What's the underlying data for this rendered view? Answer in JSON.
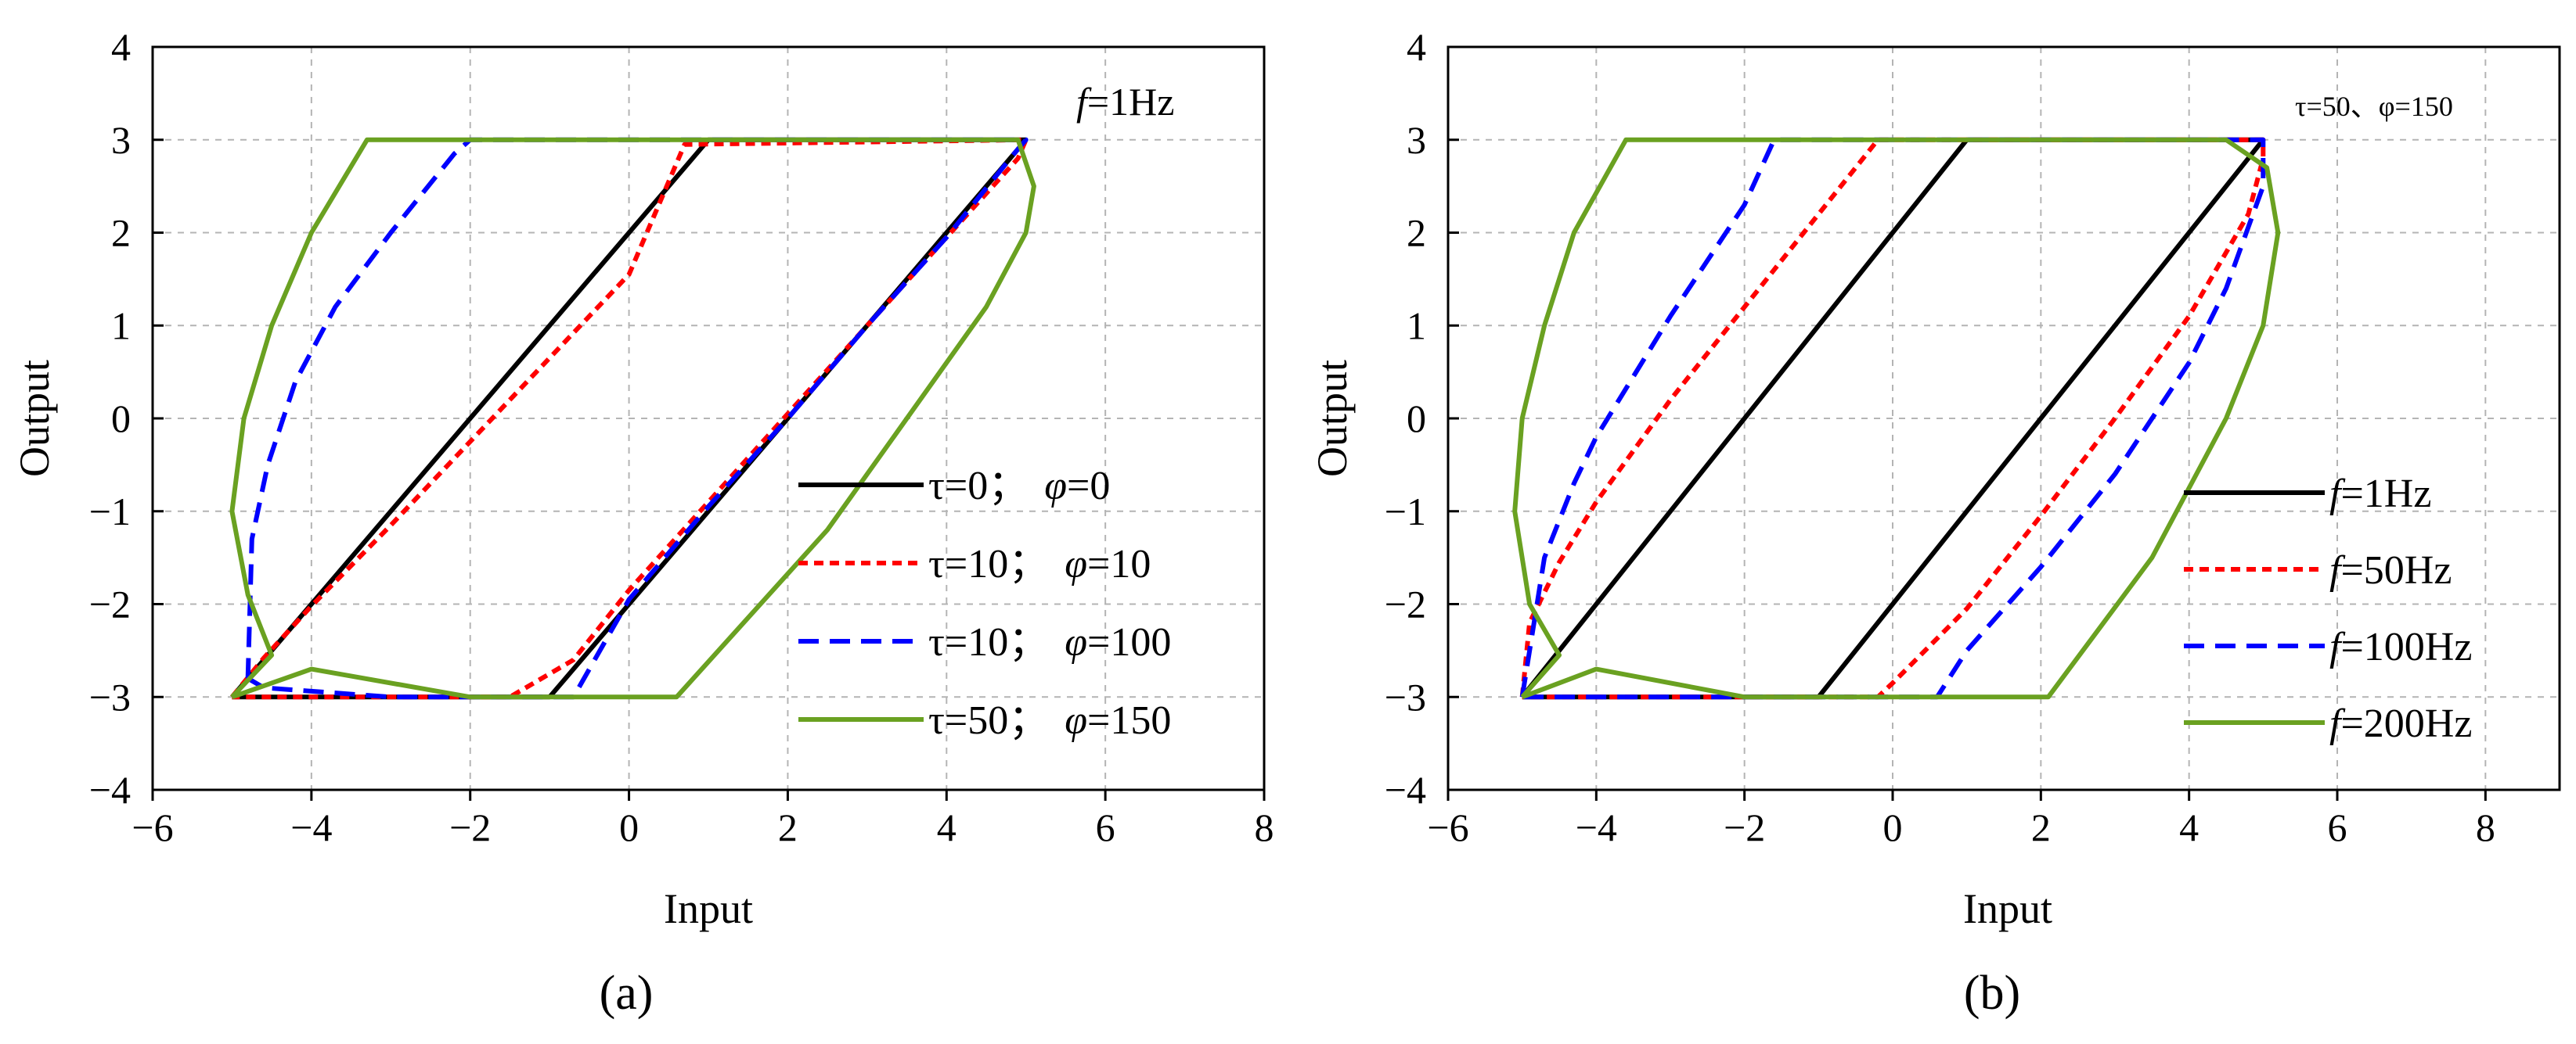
{
  "colors": {
    "black": "#000000",
    "red": "#ff0000",
    "blue": "#0000ff",
    "green": "#6aa121"
  },
  "chart_data": [
    {
      "type": "line",
      "id": "a",
      "caption": "(a)",
      "annotation": {
        "prefix": "f",
        "value": "=1Hz"
      },
      "xlabel": "Input",
      "ylabel": "Output",
      "xlim": [
        -6,
        8
      ],
      "ylim": [
        -4,
        4
      ],
      "grid": true,
      "legend_position": "bottom-right",
      "xticks": [
        -6,
        -4,
        -2,
        0,
        2,
        4,
        6,
        8
      ],
      "yticks": [
        -4,
        -3,
        -2,
        -1,
        0,
        1,
        2,
        3,
        4
      ],
      "xtick_labels": [
        "−6",
        "−4",
        "−2",
        "0",
        "2",
        "4",
        "6",
        "8"
      ],
      "ytick_labels": [
        "−4",
        "−3",
        "−2",
        "−1",
        "0",
        "1",
        "2",
        "3",
        "4"
      ],
      "series": [
        {
          "name": "τ=0；φ=0",
          "legend_prefix": "τ=0；",
          "legend_phi": "φ",
          "legend_value": "=0",
          "color": "black",
          "dash": "solid",
          "x": [
            -5,
            1,
            5,
            -1,
            -5
          ],
          "y": [
            -3,
            3,
            3,
            -3,
            -3
          ]
        },
        {
          "name": "τ=10；φ=10",
          "legend_prefix": "τ=10；",
          "legend_phi": "φ",
          "legend_value": "=10",
          "color": "red",
          "dash": "dotted",
          "x": [
            -5,
            -4.6,
            -4,
            -3,
            -2,
            -1,
            0,
            0.7,
            5,
            4.9,
            4,
            3,
            2,
            1,
            0,
            -0.7,
            -1.5,
            -3,
            -5
          ],
          "y": [
            -3,
            -2.58,
            -2.02,
            -1.15,
            -0.25,
            0.65,
            1.55,
            2.95,
            3,
            2.8,
            1.95,
            1.0,
            0.05,
            -0.9,
            -1.85,
            -2.6,
            -3,
            -3,
            -3
          ]
        },
        {
          "name": "τ=10；φ=100",
          "legend_prefix": "τ=10；",
          "legend_phi": "φ",
          "legend_value": "=100",
          "color": "blue",
          "dash": "dashed",
          "x": [
            -4.8,
            -4.75,
            -4.55,
            -4.2,
            -3.7,
            -3.0,
            -2.2,
            -2.0,
            5,
            4.85,
            4,
            3,
            2,
            1,
            0,
            -0.7,
            -3.0,
            -4.6,
            -4.8
          ],
          "y": [
            -2.8,
            -1.3,
            -0.5,
            0.4,
            1.2,
            2.0,
            2.85,
            3,
            3,
            2.85,
            1.95,
            1.0,
            0.0,
            -0.95,
            -1.95,
            -3,
            -3,
            -2.9,
            -2.8
          ]
        },
        {
          "name": "τ=50；φ=150",
          "legend_prefix": "τ=50；",
          "legend_phi": "φ",
          "legend_value": "=150",
          "color": "green",
          "dash": "solid",
          "x": [
            -5,
            -4.5,
            -4.8,
            -5.0,
            -4.85,
            -4.5,
            -4.0,
            -3.3,
            4.9,
            5.1,
            5.0,
            4.5,
            3.5,
            2.5,
            0.6,
            -2.0,
            -4.0,
            -5.0
          ],
          "y": [
            -3,
            -2.55,
            -1.9,
            -1.0,
            0.0,
            1.0,
            2.0,
            3,
            3,
            2.5,
            2.0,
            1.2,
            0.0,
            -1.2,
            -3,
            -3,
            -2.7,
            -3
          ]
        }
      ]
    },
    {
      "type": "line",
      "id": "b",
      "caption": "(b)",
      "annotation": {
        "text": "τ=50、φ=150"
      },
      "xlabel": "Input",
      "ylabel": "Output",
      "xlim": [
        -6,
        9
      ],
      "ylim": [
        -4,
        4
      ],
      "grid": true,
      "legend_position": "bottom-right",
      "xticks": [
        -6,
        -4,
        -2,
        0,
        2,
        4,
        6,
        8
      ],
      "yticks": [
        -4,
        -3,
        -2,
        -1,
        0,
        1,
        2,
        3,
        4
      ],
      "xtick_labels": [
        "−6",
        "−4",
        "−2",
        "0",
        "2",
        "4",
        "6",
        "8"
      ],
      "ytick_labels": [
        "−4",
        "−3",
        "−2",
        "−1",
        "0",
        "1",
        "2",
        "3",
        "4"
      ],
      "series": [
        {
          "name": "f=1Hz",
          "legend_prefix": "f",
          "legend_value": "=1Hz",
          "color": "black",
          "dash": "solid",
          "x": [
            -5,
            1,
            5,
            -1,
            -5
          ],
          "y": [
            -3,
            3,
            3,
            -3,
            -3
          ]
        },
        {
          "name": "f=50Hz",
          "legend_prefix": "f",
          "legend_value": "=50Hz",
          "color": "red",
          "dash": "dotted",
          "x": [
            -5,
            -4.9,
            -4.5,
            -4,
            -3,
            -2,
            -1,
            -0.2,
            5,
            5.0,
            4.8,
            4,
            3,
            2,
            1,
            0,
            -0.2,
            -3.0,
            -5
          ],
          "y": [
            -3,
            -2.2,
            -1.55,
            -0.9,
            0.2,
            1.2,
            2.2,
            3,
            3,
            2.8,
            2.2,
            1.1,
            0.0,
            -1.05,
            -2.05,
            -2.85,
            -3,
            -3,
            -3
          ]
        },
        {
          "name": "f=100Hz",
          "legend_prefix": "f",
          "legend_value": "=100Hz",
          "color": "blue",
          "dash": "dashed",
          "x": [
            -5,
            -4.7,
            -4.3,
            -4,
            -3,
            -2,
            -1.6,
            5,
            5.0,
            4.5,
            4,
            3,
            2,
            1,
            0.6,
            -3.0,
            -5
          ],
          "y": [
            -3,
            -1.5,
            -0.7,
            -0.2,
            1.1,
            2.3,
            3,
            3,
            2.5,
            1.4,
            0.6,
            -0.6,
            -1.6,
            -2.5,
            -3,
            -3,
            -3
          ]
        },
        {
          "name": "f=200Hz",
          "legend_prefix": "f",
          "legend_value": "=200Hz",
          "color": "green",
          "dash": "solid",
          "x": [
            -5,
            -4.5,
            -4.9,
            -5.1,
            -5.0,
            -4.7,
            -4.3,
            -3.6,
            4.5,
            5.05,
            5.2,
            5.0,
            4.5,
            3.5,
            2.1,
            -2.0,
            -4.0,
            -5.0
          ],
          "y": [
            -3,
            -2.55,
            -2.0,
            -1.0,
            0.0,
            1.0,
            2.0,
            3,
            3,
            2.7,
            2.0,
            1.0,
            0.0,
            -1.5,
            -3,
            -3,
            -2.7,
            -3
          ]
        }
      ]
    }
  ]
}
